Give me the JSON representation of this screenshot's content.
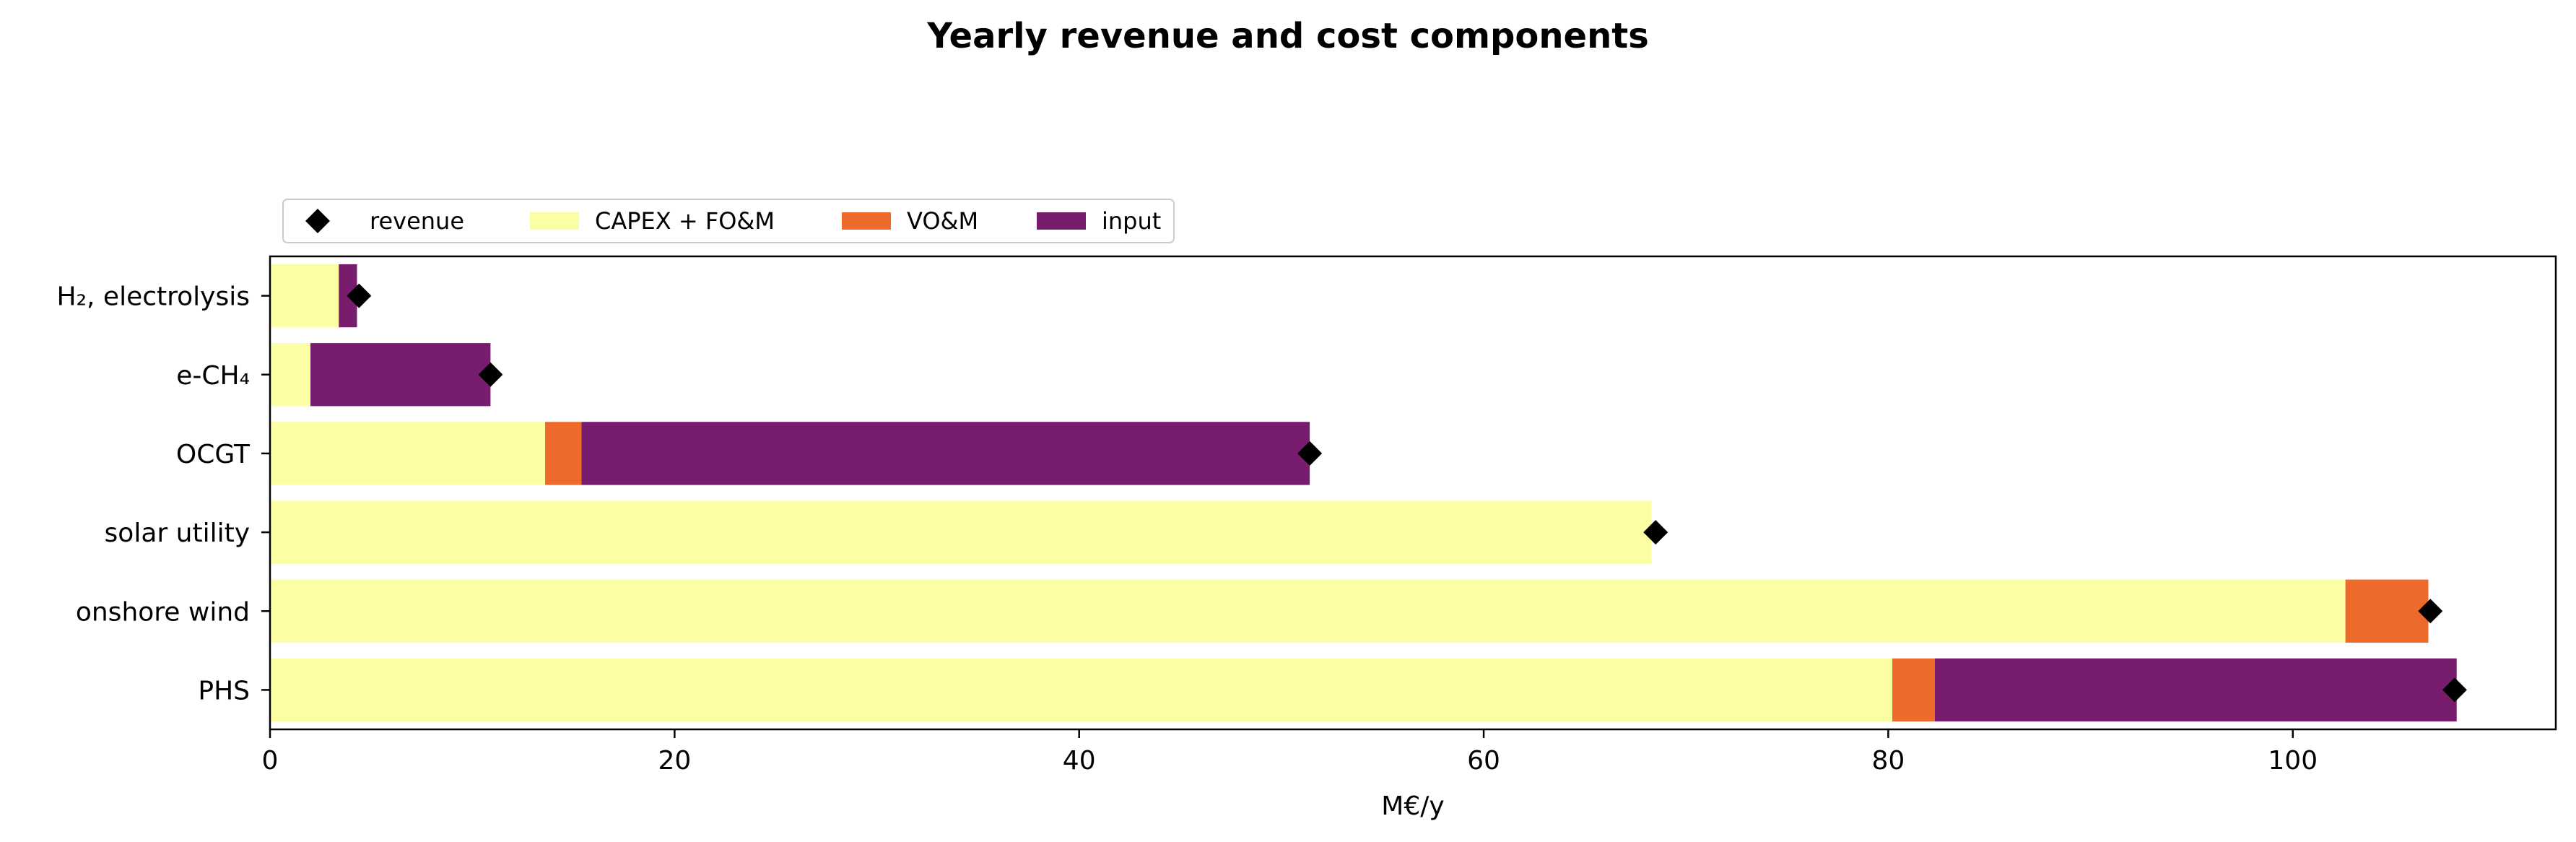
{
  "chart_data": {
    "type": "bar",
    "orientation": "horizontal",
    "stacked": true,
    "title": "Yearly revenue and cost components",
    "xlabel": "M€/y",
    "ylabel": "",
    "xlim": [
      0,
      113
    ],
    "xticks": [
      0,
      20,
      40,
      60,
      80,
      100
    ],
    "categories": [
      "H₂, electrolysis",
      "e-CH₄",
      "OCGT",
      "solar utility",
      "onshore wind",
      "PHS"
    ],
    "series": [
      {
        "name": "CAPEX + FO&M",
        "color": "#fcfea4",
        "values": [
          3.4,
          2.0,
          13.6,
          68.3,
          102.6,
          80.2
        ]
      },
      {
        "name": "VO&M",
        "color": "#ed6a2a",
        "values": [
          0.0,
          0.0,
          1.8,
          0.0,
          4.1,
          2.1
        ]
      },
      {
        "name": "input",
        "color": "#781c6d",
        "values": [
          0.9,
          8.9,
          36.0,
          0.0,
          0.0,
          25.8
        ]
      }
    ],
    "revenue": {
      "name": "revenue",
      "color": "#000000",
      "values": [
        4.4,
        10.9,
        51.4,
        68.5,
        106.8,
        108.0
      ]
    },
    "legend_order": [
      "revenue",
      "CAPEX + FO&M",
      "VO&M",
      "input"
    ],
    "legend_position": "top-left, above plot",
    "grid": false
  }
}
